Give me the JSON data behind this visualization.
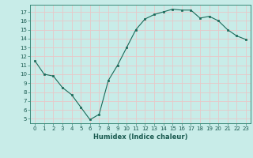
{
  "x": [
    0,
    1,
    2,
    3,
    4,
    5,
    6,
    7,
    8,
    9,
    10,
    11,
    12,
    13,
    14,
    15,
    16,
    17,
    18,
    19,
    20,
    21,
    22,
    23
  ],
  "y": [
    11.5,
    10.0,
    9.8,
    8.5,
    7.7,
    6.3,
    4.9,
    5.5,
    9.3,
    11.0,
    13.0,
    15.0,
    16.2,
    16.7,
    17.0,
    17.3,
    17.2,
    17.2,
    16.3,
    16.5,
    16.0,
    15.0,
    14.3,
    13.9
  ],
  "xlabel": "Humidex (Indice chaleur)",
  "bg_color": "#c8ece8",
  "grid_color": "#e8c8c8",
  "line_color": "#1a6b5a",
  "marker_color": "#1a6b5a",
  "xlim": [
    -0.5,
    23.5
  ],
  "ylim": [
    4.5,
    17.8
  ],
  "yticks": [
    5,
    6,
    7,
    8,
    9,
    10,
    11,
    12,
    13,
    14,
    15,
    16,
    17
  ],
  "xticks": [
    0,
    1,
    2,
    3,
    4,
    5,
    6,
    7,
    8,
    9,
    10,
    11,
    12,
    13,
    14,
    15,
    16,
    17,
    18,
    19,
    20,
    21,
    22,
    23
  ],
  "tick_label_fontsize": 5.0,
  "xlabel_fontsize": 6.0
}
